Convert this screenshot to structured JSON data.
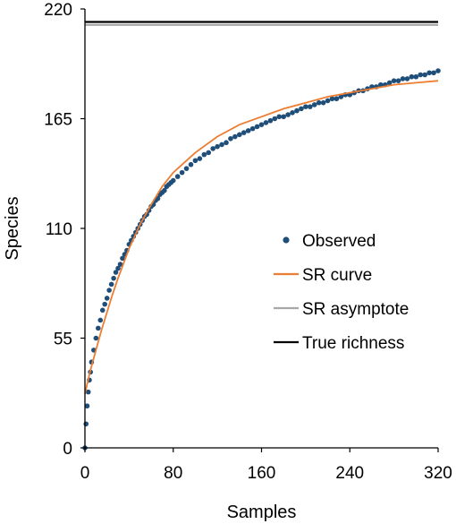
{
  "chart_data": {
    "type": "line",
    "title": "",
    "xlabel": "Samples",
    "ylabel": "Species",
    "xlim": [
      0,
      320
    ],
    "ylim": [
      0,
      220
    ],
    "x_ticks": [
      0,
      80,
      160,
      240,
      320
    ],
    "y_ticks": [
      0,
      55,
      110,
      165,
      220
    ],
    "x_tick_labels": [
      "0",
      "80",
      "160",
      "240",
      "320"
    ],
    "y_tick_labels": [
      "0",
      "55",
      "110",
      "165",
      "220"
    ],
    "grid": false,
    "legend_position": "center-right",
    "series": [
      {
        "name": "Observed",
        "kind": "markers",
        "color": "#1f4e79",
        "x": [
          0,
          1,
          2,
          3,
          4,
          5,
          6,
          8,
          10,
          12,
          14,
          16,
          18,
          20,
          22,
          24,
          26,
          28,
          30,
          32,
          34,
          36,
          38,
          40,
          42,
          44,
          46,
          48,
          50,
          52,
          54,
          56,
          58,
          60,
          62,
          64,
          66,
          68,
          70,
          72,
          74,
          76,
          78,
          80,
          84,
          88,
          92,
          96,
          100,
          104,
          108,
          112,
          116,
          120,
          124,
          128,
          132,
          136,
          140,
          144,
          148,
          152,
          156,
          160,
          164,
          168,
          172,
          176,
          180,
          184,
          188,
          192,
          196,
          200,
          204,
          208,
          212,
          216,
          220,
          224,
          228,
          232,
          236,
          240,
          244,
          248,
          252,
          256,
          260,
          264,
          268,
          272,
          276,
          280,
          284,
          288,
          292,
          296,
          300,
          304,
          308,
          312,
          316,
          320
        ],
        "y": [
          0,
          12,
          21,
          28,
          34,
          38,
          43,
          49,
          55,
          60,
          64,
          69,
          72,
          75,
          79,
          82,
          85,
          88,
          90,
          92,
          95,
          97,
          99,
          102,
          104,
          106,
          108,
          110,
          112,
          114,
          116,
          117,
          119,
          121,
          122,
          124,
          125,
          127,
          128,
          129,
          131,
          132,
          133,
          134,
          136,
          138,
          140,
          142,
          144,
          145,
          147,
          148,
          150,
          151,
          152,
          153,
          155,
          156,
          157,
          158,
          159,
          160,
          161,
          162,
          163,
          164,
          165,
          166,
          166,
          167,
          168,
          169,
          170,
          171,
          171,
          172,
          173,
          173,
          174,
          175,
          175,
          176,
          177,
          177,
          178,
          179,
          179,
          180,
          181,
          181,
          182,
          182,
          183,
          184,
          184,
          185,
          185,
          186,
          186,
          187,
          187,
          188,
          188,
          189
        ]
      },
      {
        "name": "SR curve",
        "kind": "line",
        "color": "#ed7d31",
        "x": [
          0,
          2,
          5,
          10,
          15,
          20,
          25,
          30,
          40,
          50,
          60,
          70,
          80,
          100,
          120,
          140,
          160,
          180,
          200,
          220,
          240,
          260,
          280,
          300,
          320
        ],
        "y": [
          27,
          32,
          39,
          49,
          59,
          68,
          77,
          85,
          100,
          112,
          122,
          131,
          138,
          148,
          156,
          162,
          166,
          170,
          173,
          176,
          178,
          180,
          182,
          183,
          184
        ]
      },
      {
        "name": "SR asymptote",
        "kind": "line",
        "color": "#a6a6a6",
        "x": [
          0,
          320
        ],
        "y": [
          212,
          212
        ]
      },
      {
        "name": "True richness",
        "kind": "line",
        "color": "#000000",
        "x": [
          0,
          320
        ],
        "y": [
          213.5,
          213.5
        ]
      }
    ]
  }
}
